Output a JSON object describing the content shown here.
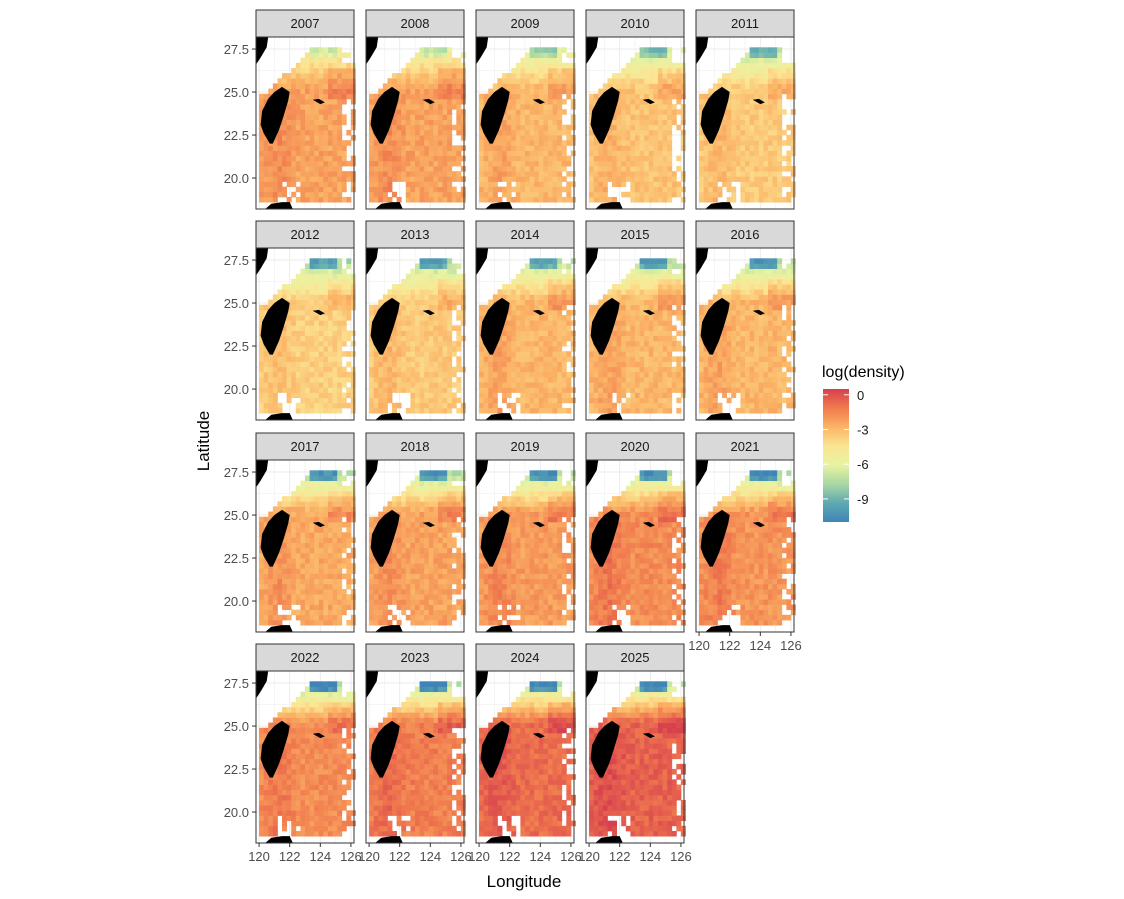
{
  "chart_data": {
    "type": "heatmap",
    "facet_by": "year",
    "panels": [
      "2007",
      "2008",
      "2009",
      "2010",
      "2011",
      "2012",
      "2013",
      "2014",
      "2015",
      "2016",
      "2017",
      "2018",
      "2019",
      "2020",
      "2021",
      "2022",
      "2023",
      "2024",
      "2025"
    ],
    "facet_layout": {
      "ncol": 5,
      "nrow": 4
    },
    "xlabel": "Longitude",
    "ylabel": "Latitude",
    "x_ticks": [
      120,
      122,
      124,
      126
    ],
    "y_ticks": [
      20.0,
      22.5,
      25.0,
      27.5
    ],
    "x_tick_labels": [
      "120",
      "122",
      "124",
      "126"
    ],
    "y_tick_labels": [
      "20.0",
      "22.5",
      "25.0",
      "27.5"
    ],
    "xlim": [
      119.8,
      126.2
    ],
    "ylim": [
      18.2,
      28.2
    ],
    "grid": true,
    "legend": {
      "title": "log(density)",
      "position": "right",
      "ticks": [
        0,
        -3,
        -6,
        -9
      ],
      "tick_labels": [
        "0",
        "-3",
        "-6",
        "-9"
      ],
      "range": [
        -11,
        0.5
      ],
      "colors": [
        "#d7404e",
        "#f07a4e",
        "#fbb466",
        "#fbe593",
        "#e8f3a2",
        "#a9d8a3",
        "#5fa9b1",
        "#3f84b6"
      ]
    },
    "panel_mean_log_density": {
      "2007": -3.0,
      "2008": -3.0,
      "2009": -3.6,
      "2010": -4.0,
      "2011": -4.2,
      "2012": -4.4,
      "2013": -4.2,
      "2014": -3.6,
      "2015": -3.6,
      "2016": -3.6,
      "2017": -3.2,
      "2018": -3.0,
      "2019": -2.8,
      "2020": -2.4,
      "2021": -2.6,
      "2022": -2.4,
      "2023": -2.0,
      "2024": -1.5,
      "2025": -1.2
    },
    "landmass_fill": "#000000",
    "strip_fill": "#d9d9d9"
  }
}
